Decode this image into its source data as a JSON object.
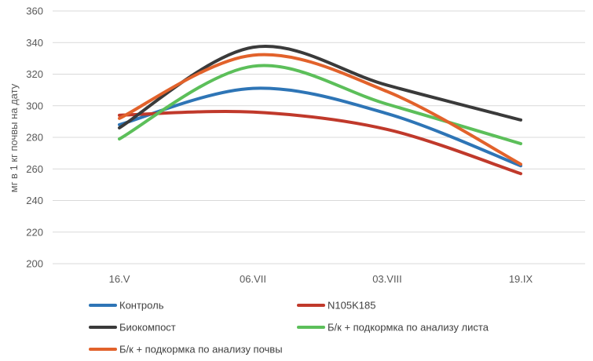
{
  "chart_data": {
    "type": "line",
    "categories": [
      "16.V",
      "06.VII",
      "03.VIII",
      "19.IX"
    ],
    "ylabel": "мг в 1 кг почвы на дату",
    "ylim": [
      200,
      360
    ],
    "yticks": [
      200,
      220,
      240,
      260,
      280,
      300,
      320,
      340,
      360
    ],
    "grid": true,
    "smooth": true,
    "legend_position": "bottom",
    "series": [
      {
        "name": "Контроль",
        "color": "#2e75b6",
        "values": [
          288,
          311,
          295,
          262
        ]
      },
      {
        "name": "N105K185",
        "color": "#c0392b",
        "values": [
          294,
          296,
          285,
          257
        ]
      },
      {
        "name": "Биокомпост",
        "color": "#3a3a3a",
        "values": [
          286,
          337,
          313,
          291
        ]
      },
      {
        "name": "Б/к + подкормка по анализу листа",
        "color": "#5cbf5a",
        "values": [
          279,
          325,
          301,
          276
        ]
      },
      {
        "name": "Б/к + подкормка по анализу почвы",
        "color": "#e2622b",
        "values": [
          292,
          332,
          309,
          263
        ]
      }
    ]
  }
}
